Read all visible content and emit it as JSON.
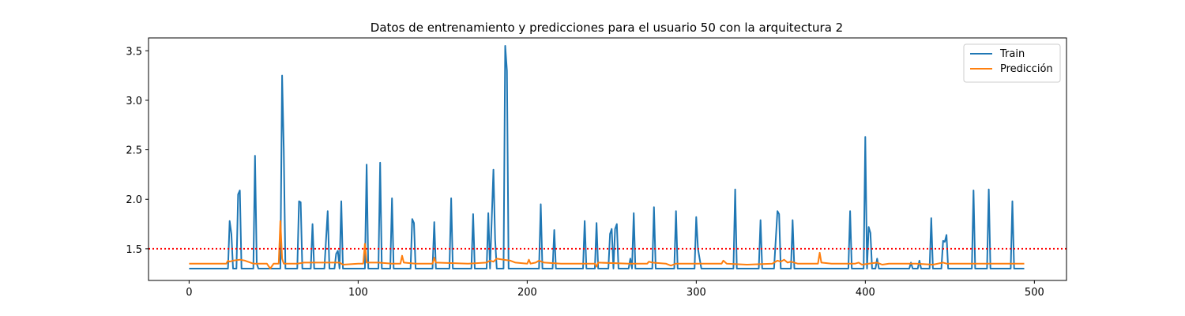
{
  "chart_data": {
    "type": "line",
    "title": "Datos de entrenamiento y predicciones para el usuario 50 con la arquitectura 2",
    "xlabel": "",
    "ylabel": "",
    "xlim": [
      -24,
      519
    ],
    "ylim": [
      1.18,
      3.63
    ],
    "xticks": [
      0,
      100,
      200,
      300,
      400,
      500
    ],
    "yticks": [
      1.5,
      2.0,
      2.5,
      3.0,
      3.5
    ],
    "xtick_labels": [
      "0",
      "100",
      "200",
      "300",
      "400",
      "500"
    ],
    "ytick_labels": [
      "1.5",
      "2.0",
      "2.5",
      "3.0",
      "3.5"
    ],
    "grid": false,
    "legend_position": "top-right",
    "threshold": {
      "y": 1.5,
      "color": "#ff0000",
      "style": "dotted"
    },
    "series": [
      {
        "name": "Train",
        "color": "#1f77b4",
        "baseline": 1.3,
        "peaks": [
          [
            23,
            1.3
          ],
          [
            24,
            1.78
          ],
          [
            25,
            1.65
          ],
          [
            26,
            1.3
          ],
          [
            28,
            1.3
          ],
          [
            29,
            2.05
          ],
          [
            30,
            2.09
          ],
          [
            31,
            1.3
          ],
          [
            38,
            1.3
          ],
          [
            39,
            2.44
          ],
          [
            40,
            1.35
          ],
          [
            41,
            1.3
          ],
          [
            54,
            1.3
          ],
          [
            55,
            3.25
          ],
          [
            56,
            2.5
          ],
          [
            57,
            1.3
          ],
          [
            64,
            1.3
          ],
          [
            65,
            1.98
          ],
          [
            66,
            1.97
          ],
          [
            67,
            1.3
          ],
          [
            72,
            1.3
          ],
          [
            73,
            1.75
          ],
          [
            74,
            1.3
          ],
          [
            80,
            1.3
          ],
          [
            82,
            1.88
          ],
          [
            83,
            1.3
          ],
          [
            86,
            1.3
          ],
          [
            87,
            1.45
          ],
          [
            88,
            1.48
          ],
          [
            89,
            1.3
          ],
          [
            90,
            1.98
          ],
          [
            91,
            1.3
          ],
          [
            104,
            1.3
          ],
          [
            105,
            2.35
          ],
          [
            106,
            1.3
          ],
          [
            112,
            1.3
          ],
          [
            113,
            2.37
          ],
          [
            114,
            1.3
          ],
          [
            119,
            1.3
          ],
          [
            120,
            2.01
          ],
          [
            121,
            1.3
          ],
          [
            131,
            1.3
          ],
          [
            132,
            1.8
          ],
          [
            133,
            1.76
          ],
          [
            134,
            1.3
          ],
          [
            144,
            1.3
          ],
          [
            145,
            1.77
          ],
          [
            146,
            1.3
          ],
          [
            154,
            1.3
          ],
          [
            155,
            2.01
          ],
          [
            156,
            1.3
          ],
          [
            167,
            1.3
          ],
          [
            168,
            1.85
          ],
          [
            169,
            1.3
          ],
          [
            176,
            1.3
          ],
          [
            177,
            1.86
          ],
          [
            178,
            1.3
          ],
          [
            180,
            2.3
          ],
          [
            181,
            1.6
          ],
          [
            182,
            1.3
          ],
          [
            186,
            1.3
          ],
          [
            187,
            3.55
          ],
          [
            188,
            3.3
          ],
          [
            189,
            1.3
          ],
          [
            207,
            1.3
          ],
          [
            208,
            1.95
          ],
          [
            209,
            1.3
          ],
          [
            215,
            1.3
          ],
          [
            216,
            1.69
          ],
          [
            217,
            1.3
          ],
          [
            233,
            1.3
          ],
          [
            234,
            1.78
          ],
          [
            235,
            1.3
          ],
          [
            240,
            1.3
          ],
          [
            241,
            1.76
          ],
          [
            242,
            1.3
          ],
          [
            248,
            1.3
          ],
          [
            249,
            1.65
          ],
          [
            250,
            1.7
          ],
          [
            251,
            1.3
          ],
          [
            252,
            1.7
          ],
          [
            253,
            1.75
          ],
          [
            254,
            1.3
          ],
          [
            260,
            1.3
          ],
          [
            261,
            1.4
          ],
          [
            262,
            1.3
          ],
          [
            263,
            1.86
          ],
          [
            264,
            1.3
          ],
          [
            274,
            1.3
          ],
          [
            275,
            1.92
          ],
          [
            276,
            1.3
          ],
          [
            287,
            1.3
          ],
          [
            288,
            1.88
          ],
          [
            289,
            1.3
          ],
          [
            299,
            1.3
          ],
          [
            300,
            1.82
          ],
          [
            301,
            1.5
          ],
          [
            302,
            1.4
          ],
          [
            303,
            1.3
          ],
          [
            322,
            1.3
          ],
          [
            323,
            2.1
          ],
          [
            324,
            1.3
          ],
          [
            337,
            1.3
          ],
          [
            338,
            1.79
          ],
          [
            339,
            1.3
          ],
          [
            346,
            1.3
          ],
          [
            348,
            1.88
          ],
          [
            349,
            1.85
          ],
          [
            350,
            1.3
          ],
          [
            356,
            1.3
          ],
          [
            357,
            1.79
          ],
          [
            358,
            1.3
          ],
          [
            390,
            1.3
          ],
          [
            391,
            1.88
          ],
          [
            392,
            1.3
          ],
          [
            399,
            1.3
          ],
          [
            400,
            2.63
          ],
          [
            401,
            1.3
          ],
          [
            402,
            1.72
          ],
          [
            403,
            1.66
          ],
          [
            404,
            1.3
          ],
          [
            406,
            1.3
          ],
          [
            407,
            1.4
          ],
          [
            408,
            1.3
          ],
          [
            426,
            1.3
          ],
          [
            427,
            1.36
          ],
          [
            428,
            1.3
          ],
          [
            431,
            1.3
          ],
          [
            432,
            1.38
          ],
          [
            433,
            1.3
          ],
          [
            438,
            1.3
          ],
          [
            439,
            1.81
          ],
          [
            440,
            1.3
          ],
          [
            445,
            1.3
          ],
          [
            446,
            1.58
          ],
          [
            447,
            1.57
          ],
          [
            448,
            1.64
          ],
          [
            449,
            1.3
          ],
          [
            463,
            1.3
          ],
          [
            464,
            2.09
          ],
          [
            465,
            1.3
          ],
          [
            472,
            1.3
          ],
          [
            473,
            2.1
          ],
          [
            474,
            1.3
          ],
          [
            486,
            1.3
          ],
          [
            487,
            1.98
          ],
          [
            488,
            1.3
          ]
        ],
        "x_range": [
          0,
          494
        ]
      },
      {
        "name": "Predicción",
        "color": "#ff7f0e",
        "baseline": 1.35,
        "points": [
          [
            0,
            1.35
          ],
          [
            22,
            1.35
          ],
          [
            23,
            1.38
          ],
          [
            24,
            1.37
          ],
          [
            26,
            1.38
          ],
          [
            30,
            1.39
          ],
          [
            33,
            1.38
          ],
          [
            38,
            1.35
          ],
          [
            46,
            1.35
          ],
          [
            48,
            1.3
          ],
          [
            50,
            1.35
          ],
          [
            53,
            1.35
          ],
          [
            54,
            1.78
          ],
          [
            55,
            1.4
          ],
          [
            56,
            1.35
          ],
          [
            64,
            1.35
          ],
          [
            68,
            1.36
          ],
          [
            86,
            1.36
          ],
          [
            89,
            1.36
          ],
          [
            91,
            1.34
          ],
          [
            100,
            1.35
          ],
          [
            103,
            1.35
          ],
          [
            104,
            1.55
          ],
          [
            105,
            1.36
          ],
          [
            112,
            1.36
          ],
          [
            120,
            1.35
          ],
          [
            125,
            1.35
          ],
          [
            126,
            1.43
          ],
          [
            127,
            1.36
          ],
          [
            134,
            1.35
          ],
          [
            144,
            1.35
          ],
          [
            145,
            1.41
          ],
          [
            146,
            1.36
          ],
          [
            165,
            1.35
          ],
          [
            176,
            1.36
          ],
          [
            178,
            1.38
          ],
          [
            180,
            1.37
          ],
          [
            182,
            1.4
          ],
          [
            186,
            1.39
          ],
          [
            190,
            1.38
          ],
          [
            193,
            1.36
          ],
          [
            200,
            1.35
          ],
          [
            201,
            1.39
          ],
          [
            202,
            1.35
          ],
          [
            205,
            1.36
          ],
          [
            207,
            1.38
          ],
          [
            210,
            1.36
          ],
          [
            220,
            1.35
          ],
          [
            240,
            1.35
          ],
          [
            241,
            1.32
          ],
          [
            242,
            1.36
          ],
          [
            260,
            1.35
          ],
          [
            271,
            1.35
          ],
          [
            272,
            1.37
          ],
          [
            274,
            1.36
          ],
          [
            282,
            1.35
          ],
          [
            285,
            1.33
          ],
          [
            288,
            1.35
          ],
          [
            300,
            1.35
          ],
          [
            315,
            1.35
          ],
          [
            316,
            1.38
          ],
          [
            318,
            1.35
          ],
          [
            330,
            1.34
          ],
          [
            345,
            1.35
          ],
          [
            348,
            1.38
          ],
          [
            350,
            1.37
          ],
          [
            352,
            1.39
          ],
          [
            354,
            1.36
          ],
          [
            356,
            1.37
          ],
          [
            360,
            1.35
          ],
          [
            372,
            1.35
          ],
          [
            373,
            1.46
          ],
          [
            374,
            1.36
          ],
          [
            380,
            1.35
          ],
          [
            390,
            1.35
          ],
          [
            394,
            1.35
          ],
          [
            396,
            1.36
          ],
          [
            398,
            1.34
          ],
          [
            402,
            1.35
          ],
          [
            407,
            1.36
          ],
          [
            410,
            1.34
          ],
          [
            414,
            1.35
          ],
          [
            430,
            1.35
          ],
          [
            440,
            1.34
          ],
          [
            446,
            1.36
          ],
          [
            448,
            1.35
          ],
          [
            470,
            1.35
          ],
          [
            494,
            1.35
          ]
        ]
      }
    ]
  }
}
